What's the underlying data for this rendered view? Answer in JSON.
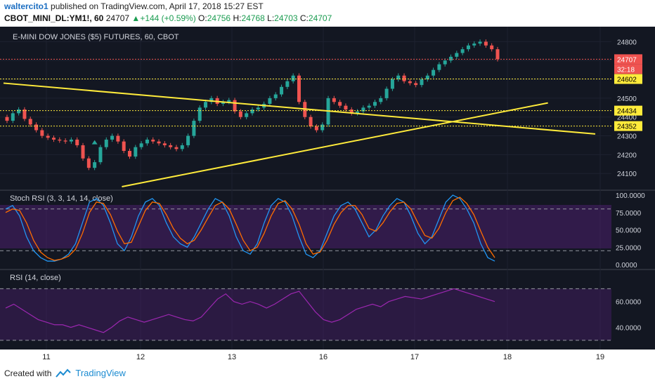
{
  "header": {
    "author": "waltercito1",
    "published_text": "published on TradingView.com, April 17, 2018 15:27 EST",
    "symbol": "CBOT_MINI_DL:YM1!, 60",
    "last": "24707",
    "change": "+144 (+0.59%)",
    "o_label": "O:",
    "o_value": "24756",
    "h_label": "H:",
    "h_value": "24768",
    "l_label": "L:",
    "l_value": "24703",
    "c_label": "C:",
    "c_value": "24707"
  },
  "footer": {
    "created_with": "Created with",
    "brand": "TradingView"
  },
  "colors": {
    "bg": "#131722",
    "up": "#26a69a",
    "down": "#ef5350",
    "trend": "#ffeb3b",
    "blue": "#2196f3",
    "orange": "#ff6d00",
    "purple": "#9c27b0"
  },
  "chart_data": {
    "type": "candlestick",
    "title": "E-MINI DOW JONES ($5) FUTURES, 60, CBOT",
    "x_tick_labels": [
      "11",
      "12",
      "13",
      "16",
      "17",
      "18",
      "19"
    ],
    "price_ticks": [
      24100,
      24200,
      24300,
      24400,
      24500,
      24600,
      24700,
      24800
    ],
    "ylim": [
      24030,
      24850
    ],
    "price_labels": [
      {
        "text": "24707",
        "style": "current"
      },
      {
        "text": "32:18",
        "style": "countdown"
      },
      {
        "text": "24602",
        "style": "hline"
      },
      {
        "text": "24434",
        "style": "hline"
      },
      {
        "text": "24352",
        "style": "hline"
      }
    ],
    "horizontal_levels": [
      24707,
      24602,
      24434,
      24352
    ],
    "trendlines": [
      {
        "x1": 0.0,
        "y1": 24580,
        "x2": 1.0,
        "y2": 24310
      },
      {
        "x1": 0.2,
        "y1": 24030,
        "x2": 0.92,
        "y2": 24475
      }
    ],
    "closes": [
      24380,
      24420,
      24440,
      24390,
      24360,
      24330,
      24300,
      24290,
      24280,
      24275,
      24270,
      24280,
      24250,
      24180,
      24130,
      24160,
      24240,
      24280,
      24300,
      24270,
      24220,
      24190,
      24240,
      24260,
      24280,
      24270,
      24260,
      24250,
      24240,
      24230,
      24250,
      24300,
      24380,
      24450,
      24480,
      24500,
      24470,
      24480,
      24490,
      24430,
      24400,
      24420,
      24440,
      24450,
      24470,
      24500,
      24520,
      24560,
      24590,
      24620,
      24480,
      24400,
      24350,
      24330,
      24360,
      24500,
      24480,
      24460,
      24440,
      24420,
      24430,
      24450,
      24460,
      24480,
      24500,
      24550,
      24600,
      24620,
      24590,
      24580,
      24570,
      24600,
      24620,
      24650,
      24680,
      24700,
      24720,
      24740,
      24760,
      24780,
      24790,
      24800,
      24780,
      24760,
      24707
    ],
    "stoch_rsi": {
      "label": "Stoch RSI (3, 3, 14, 14, close)",
      "ticks": [
        "100.0000",
        "75.0000",
        "50.0000",
        "25.0000",
        "0.0000"
      ],
      "k": [
        80,
        85,
        70,
        40,
        20,
        10,
        5,
        5,
        8,
        15,
        30,
        60,
        90,
        95,
        85,
        60,
        30,
        20,
        40,
        70,
        90,
        95,
        85,
        60,
        40,
        30,
        25,
        40,
        60,
        80,
        95,
        90,
        70,
        40,
        20,
        15,
        30,
        60,
        85,
        95,
        90,
        70,
        40,
        15,
        10,
        20,
        45,
        70,
        85,
        90,
        80,
        60,
        40,
        50,
        70,
        85,
        95,
        90,
        70,
        45,
        30,
        40,
        65,
        90,
        100,
        95,
        80,
        60,
        30,
        10,
        5
      ],
      "d": [
        75,
        80,
        78,
        60,
        35,
        18,
        10,
        6,
        8,
        12,
        22,
        45,
        75,
        90,
        88,
        72,
        48,
        30,
        32,
        55,
        78,
        90,
        88,
        72,
        52,
        38,
        30,
        35,
        50,
        68,
        85,
        90,
        80,
        58,
        35,
        20,
        25,
        45,
        70,
        88,
        92,
        80,
        58,
        30,
        15,
        18,
        35,
        58,
        75,
        85,
        85,
        72,
        52,
        48,
        60,
        76,
        88,
        90,
        80,
        60,
        42,
        38,
        52,
        75,
        92,
        97,
        88,
        72,
        48,
        25,
        10
      ]
    },
    "rsi": {
      "label": "RSI (14, close)",
      "ticks": [
        "60.0000",
        "40.0000"
      ],
      "upper": 70,
      "lower": 30,
      "values": [
        55,
        58,
        54,
        50,
        46,
        44,
        42,
        42,
        40,
        42,
        40,
        38,
        36,
        40,
        45,
        48,
        46,
        44,
        46,
        48,
        50,
        48,
        46,
        45,
        48,
        55,
        62,
        66,
        60,
        58,
        60,
        58,
        55,
        58,
        62,
        66,
        68,
        60,
        52,
        46,
        44,
        46,
        50,
        54,
        56,
        58,
        56,
        60,
        62,
        64,
        63,
        62,
        64,
        66,
        68,
        70,
        68,
        66,
        64,
        62,
        60
      ]
    }
  }
}
